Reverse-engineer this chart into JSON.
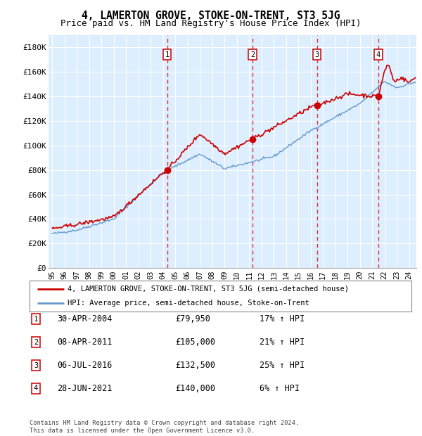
{
  "title": "4, LAMERTON GROVE, STOKE-ON-TRENT, ST3 5JG",
  "subtitle": "Price paid vs. HM Land Registry's House Price Index (HPI)",
  "ylim": [
    0,
    190000
  ],
  "yticks": [
    0,
    20000,
    40000,
    60000,
    80000,
    100000,
    120000,
    140000,
    160000,
    180000
  ],
  "ytick_labels": [
    "£0",
    "£20K",
    "£40K",
    "£60K",
    "£80K",
    "£100K",
    "£120K",
    "£140K",
    "£160K",
    "£180K"
  ],
  "xlim_start": 1994.7,
  "xlim_end": 2024.6,
  "sale_dates": [
    2004.33,
    2011.27,
    2016.51,
    2021.49
  ],
  "sale_prices": [
    79950,
    105000,
    132500,
    140000
  ],
  "sale_labels": [
    "1",
    "2",
    "3",
    "4"
  ],
  "sale_hpi_pct": [
    "17% ↑ HPI",
    "21% ↑ HPI",
    "25% ↑ HPI",
    "6% ↑ HPI"
  ],
  "sale_dates_str": [
    "30-APR-2004",
    "08-APR-2011",
    "06-JUL-2016",
    "28-JUN-2021"
  ],
  "sale_prices_str": [
    "£79,950",
    "£105,000",
    "£132,500",
    "£140,000"
  ],
  "hpi_color": "#6699cc",
  "sale_color": "#cc0000",
  "vline_color": "#dd3333",
  "background_color": "#ddeeff",
  "legend_line1": "4, LAMERTON GROVE, STOKE-ON-TRENT, ST3 5JG (semi-detached house)",
  "legend_line2": "HPI: Average price, semi-detached house, Stoke-on-Trent",
  "footer": "Contains HM Land Registry data © Crown copyright and database right 2024.\nThis data is licensed under the Open Government Licence v3.0.",
  "title_fontsize": 10.5,
  "subtitle_fontsize": 9
}
